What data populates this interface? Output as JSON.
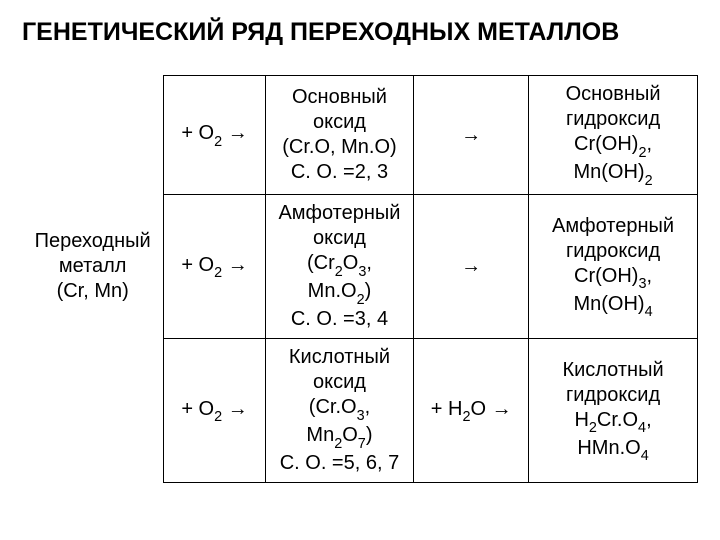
{
  "title": "ГЕНЕТИЧЕСКИЙ РЯД ПЕРЕХОДНЫХ МЕТАЛЛОВ",
  "col1": {
    "metal_label1": "Переходный",
    "metal_label2": "металл",
    "metal_label3": "(Cr, Mn)"
  },
  "reag": {
    "r1": "+ O",
    "r2": "→"
  },
  "arrow": "→",
  "water": {
    "pre": "+ H",
    "sub": "2",
    "post": "O →"
  },
  "row1": {
    "ox1": "Основный",
    "ox2": "оксид",
    "ox3": "(Cr.O, Mn.O)",
    "ox4": "C. O. =2, 3",
    "hy1": "Основный",
    "hy2": "гидроксид",
    "hy3": "Cr(OH)",
    "hy3b": ",",
    "hy4": "Mn(OH)",
    "sub": "2"
  },
  "row2": {
    "ox1": "Амфотерный",
    "ox2": "оксид",
    "ox3a": "(Cr",
    "ox3b": "O",
    "ox3c": ",",
    "ox4a": "Mn.O",
    "ox4b": ")",
    "ox5": "C. O. =3, 4",
    "s2": "2",
    "s3": "3",
    "hy1": "Амфотерный",
    "hy2": "гидроксид",
    "hy3": "Cr(OH)",
    "hy3b": ",",
    "hy4": "Mn(OH)",
    "s4": "4"
  },
  "row3": {
    "ox1": "Кислотный",
    "ox2": "оксид",
    "ox3a": "(Cr.O",
    "ox3b": ",",
    "ox4a": "Mn",
    "ox4b": "O",
    "ox4c": ")",
    "ox5": "C. O. =5, 6, 7",
    "s2": "2",
    "s3": "3",
    "s7": "7",
    "hy1": "Кислотный",
    "hy2": "гидроксид",
    "hy3a": "H",
    "hy3b": "Cr.O",
    "hy3c": ",",
    "hy4a": "HMn.O",
    "s4": "4"
  }
}
